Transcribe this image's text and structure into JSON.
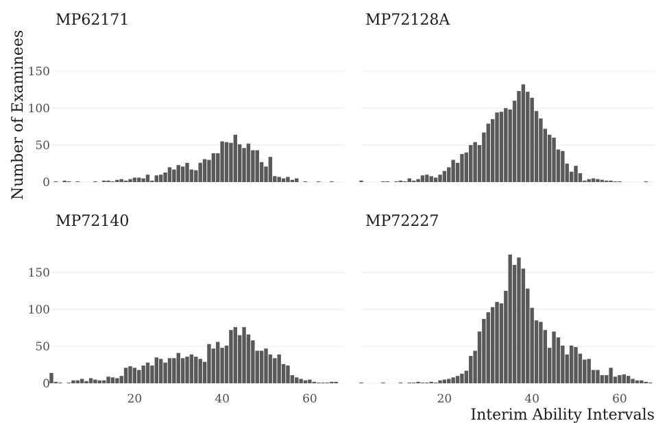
{
  "chart_data": {
    "type": "bar",
    "facet_layout": "2x2",
    "shared_axes": true,
    "xlabel": "Interim Ability Intervals",
    "ylabel": "Number of Examinees",
    "xlim": [
      1,
      68
    ],
    "ylim": [
      0,
      185
    ],
    "x_ticks": [
      20,
      40,
      60
    ],
    "y_ticks": [
      0,
      50,
      100,
      150
    ],
    "grid": true,
    "bar_color": "#595959",
    "x": [
      1,
      2,
      3,
      4,
      5,
      6,
      7,
      8,
      9,
      10,
      11,
      12,
      13,
      14,
      15,
      16,
      17,
      18,
      19,
      20,
      21,
      22,
      23,
      24,
      25,
      26,
      27,
      28,
      29,
      30,
      31,
      32,
      33,
      34,
      35,
      36,
      37,
      38,
      39,
      40,
      41,
      42,
      43,
      44,
      45,
      46,
      47,
      48,
      49,
      50,
      51,
      52,
      53,
      54,
      55,
      56,
      57,
      58,
      59,
      60,
      61,
      62,
      63,
      64,
      65,
      66,
      67
    ],
    "panels": [
      {
        "title": "MP62171",
        "values": [
          0,
          1,
          0,
          2,
          1,
          0,
          1,
          0,
          0,
          0,
          1,
          0,
          2,
          2,
          1,
          3,
          4,
          2,
          4,
          6,
          6,
          5,
          10,
          2,
          9,
          10,
          13,
          20,
          17,
          23,
          21,
          26,
          17,
          16,
          26,
          31,
          30,
          39,
          39,
          55,
          54,
          53,
          64,
          51,
          46,
          52,
          43,
          43,
          27,
          21,
          34,
          8,
          7,
          5,
          7,
          3,
          5,
          0,
          1,
          0,
          0,
          1,
          0,
          0,
          1,
          0,
          0
        ]
      },
      {
        "title": "MP72128A",
        "values": [
          2,
          0,
          0,
          0,
          0,
          1,
          1,
          0,
          1,
          2,
          1,
          5,
          2,
          4,
          9,
          10,
          8,
          6,
          10,
          15,
          20,
          30,
          26,
          38,
          40,
          50,
          54,
          50,
          67,
          79,
          85,
          94,
          95,
          100,
          98,
          110,
          123,
          132,
          122,
          114,
          96,
          86,
          72,
          64,
          60,
          44,
          42,
          25,
          14,
          22,
          12,
          2,
          4,
          5,
          4,
          3,
          2,
          2,
          1,
          1,
          0,
          0,
          0,
          0,
          0,
          1,
          0
        ]
      },
      {
        "title": "MP72140",
        "values": [
          14,
          2,
          1,
          0,
          1,
          4,
          4,
          6,
          3,
          7,
          5,
          4,
          4,
          9,
          8,
          7,
          10,
          21,
          23,
          21,
          18,
          24,
          28,
          24,
          35,
          33,
          28,
          34,
          34,
          41,
          34,
          36,
          39,
          36,
          33,
          29,
          53,
          47,
          56,
          48,
          51,
          72,
          76,
          65,
          76,
          66,
          58,
          44,
          44,
          47,
          39,
          34,
          39,
          26,
          24,
          11,
          8,
          6,
          4,
          5,
          2,
          1,
          1,
          1,
          2,
          2,
          0
        ]
      },
      {
        "title": "MP72227",
        "values": [
          1,
          0,
          0,
          0,
          0,
          1,
          0,
          0,
          0,
          1,
          0,
          1,
          1,
          2,
          1,
          1,
          2,
          1,
          4,
          5,
          6,
          8,
          10,
          13,
          17,
          37,
          44,
          70,
          87,
          96,
          103,
          110,
          108,
          125,
          174,
          160,
          170,
          155,
          128,
          102,
          85,
          83,
          72,
          48,
          70,
          62,
          51,
          39,
          51,
          49,
          40,
          32,
          33,
          18,
          18,
          11,
          11,
          21,
          9,
          11,
          12,
          10,
          6,
          4,
          4,
          2,
          1
        ]
      }
    ]
  }
}
